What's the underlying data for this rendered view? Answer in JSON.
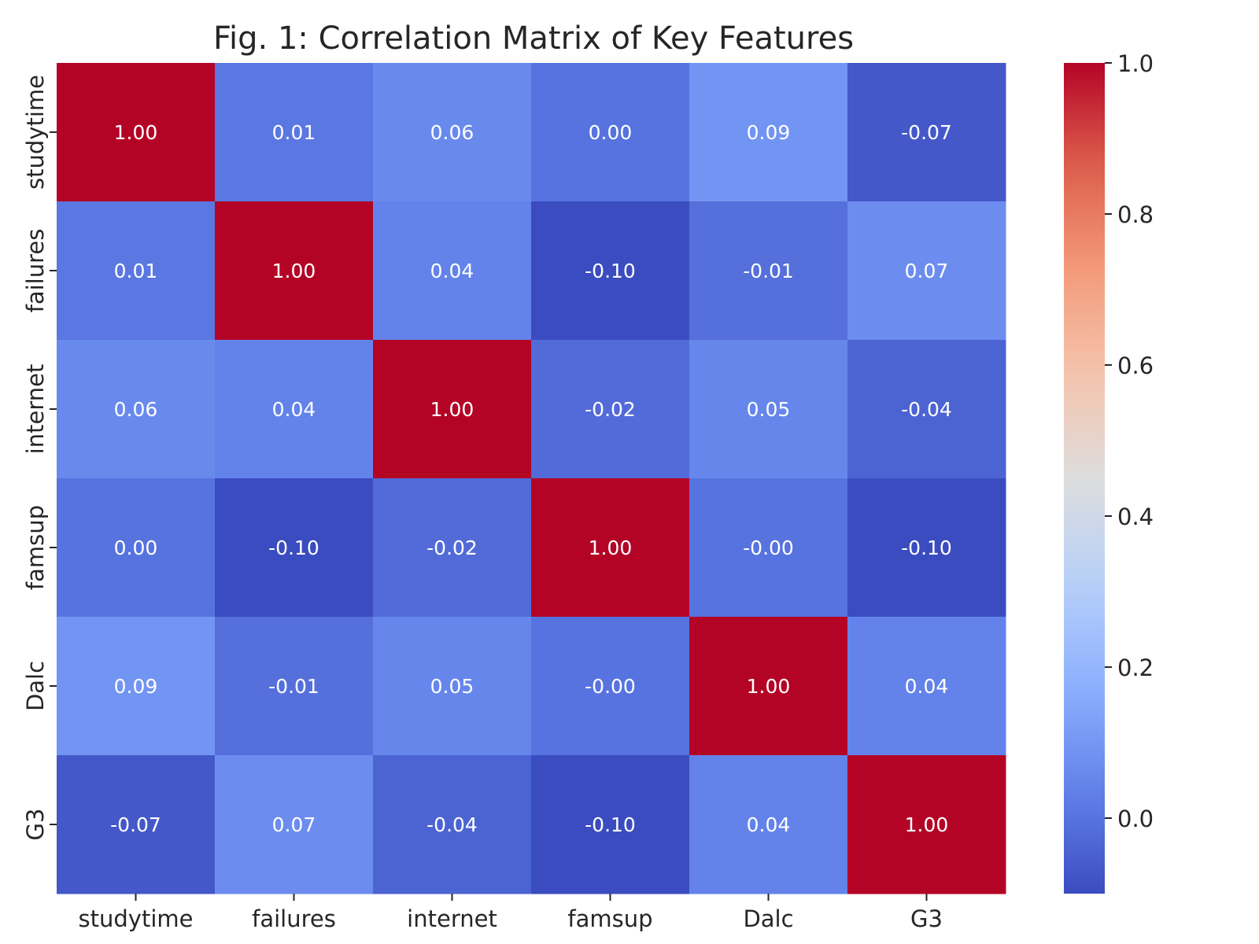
{
  "chart_data": {
    "type": "heatmap",
    "title": "Fig. 1: Correlation Matrix of Key Features",
    "x_labels": [
      "studytime",
      "failures",
      "internet",
      "famsup",
      "Dalc",
      "G3"
    ],
    "y_labels": [
      "studytime",
      "failures",
      "internet",
      "famsup",
      "Dalc",
      "G3"
    ],
    "values": [
      [
        1.0,
        0.01,
        0.06,
        0.0,
        0.09,
        -0.07
      ],
      [
        0.01,
        1.0,
        0.04,
        -0.1,
        -0.01,
        0.07
      ],
      [
        0.06,
        0.04,
        1.0,
        -0.02,
        0.05,
        -0.04
      ],
      [
        0.0,
        -0.1,
        -0.02,
        1.0,
        -0.0,
        -0.1
      ],
      [
        0.09,
        -0.01,
        0.05,
        -0.0,
        1.0,
        0.04
      ],
      [
        -0.07,
        0.07,
        -0.04,
        -0.1,
        0.04,
        1.0
      ]
    ],
    "cell_labels": [
      [
        "1.00",
        "0.01",
        "0.06",
        "0.00",
        "0.09",
        "-0.07"
      ],
      [
        "0.01",
        "1.00",
        "0.04",
        "-0.10",
        "-0.01",
        "0.07"
      ],
      [
        "0.06",
        "0.04",
        "1.00",
        "-0.02",
        "0.05",
        "-0.04"
      ],
      [
        "0.00",
        "-0.10",
        "-0.02",
        "1.00",
        "-0.00",
        "-0.10"
      ],
      [
        "0.09",
        "-0.01",
        "0.05",
        "-0.00",
        "1.00",
        "0.04"
      ],
      [
        "-0.07",
        "0.07",
        "-0.04",
        "-0.10",
        "0.04",
        "1.00"
      ]
    ],
    "colormap": "coolwarm",
    "vmin": -0.1,
    "vmax": 1.0,
    "colorbar": {
      "ticks": [
        0.0,
        0.2,
        0.4,
        0.6,
        0.8,
        1.0
      ],
      "tick_labels": [
        "0.0",
        "0.2",
        "0.4",
        "0.6",
        "0.8",
        "1.0"
      ],
      "placement": "right"
    },
    "grid": false
  }
}
